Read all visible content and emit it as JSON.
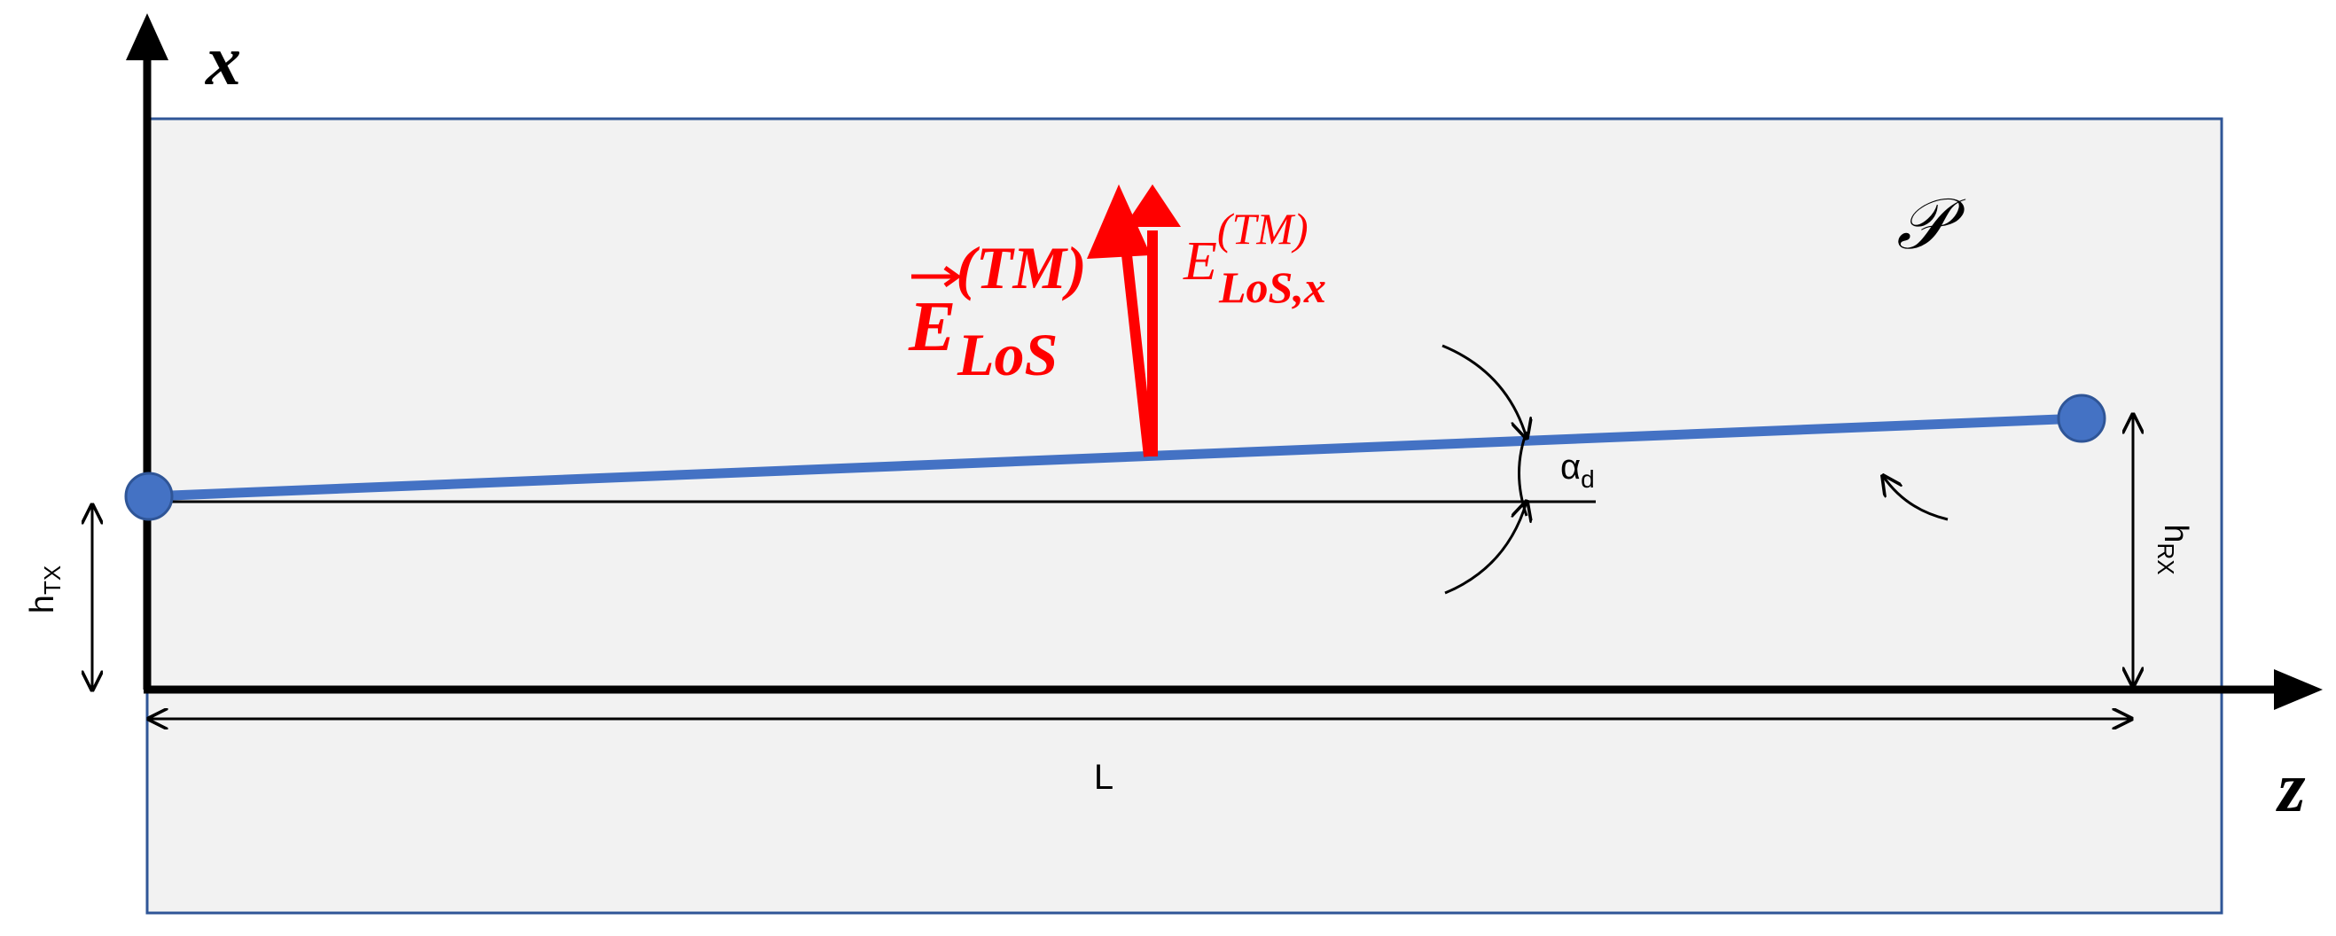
{
  "axes": {
    "x": "x",
    "z": "z"
  },
  "plane_label": "𝒫",
  "field_vector": {
    "base": "E",
    "superscript": "(TM)",
    "subscript": "LoS"
  },
  "field_component": {
    "base": "E",
    "superscript": "(TM)",
    "subscript": "LoS,x"
  },
  "angle": {
    "base": "α",
    "subscript": "d"
  },
  "tx_height": {
    "base": "h",
    "subscript": "TX"
  },
  "rx_height": {
    "base": "h",
    "subscript": "RX"
  },
  "distance": "L"
}
